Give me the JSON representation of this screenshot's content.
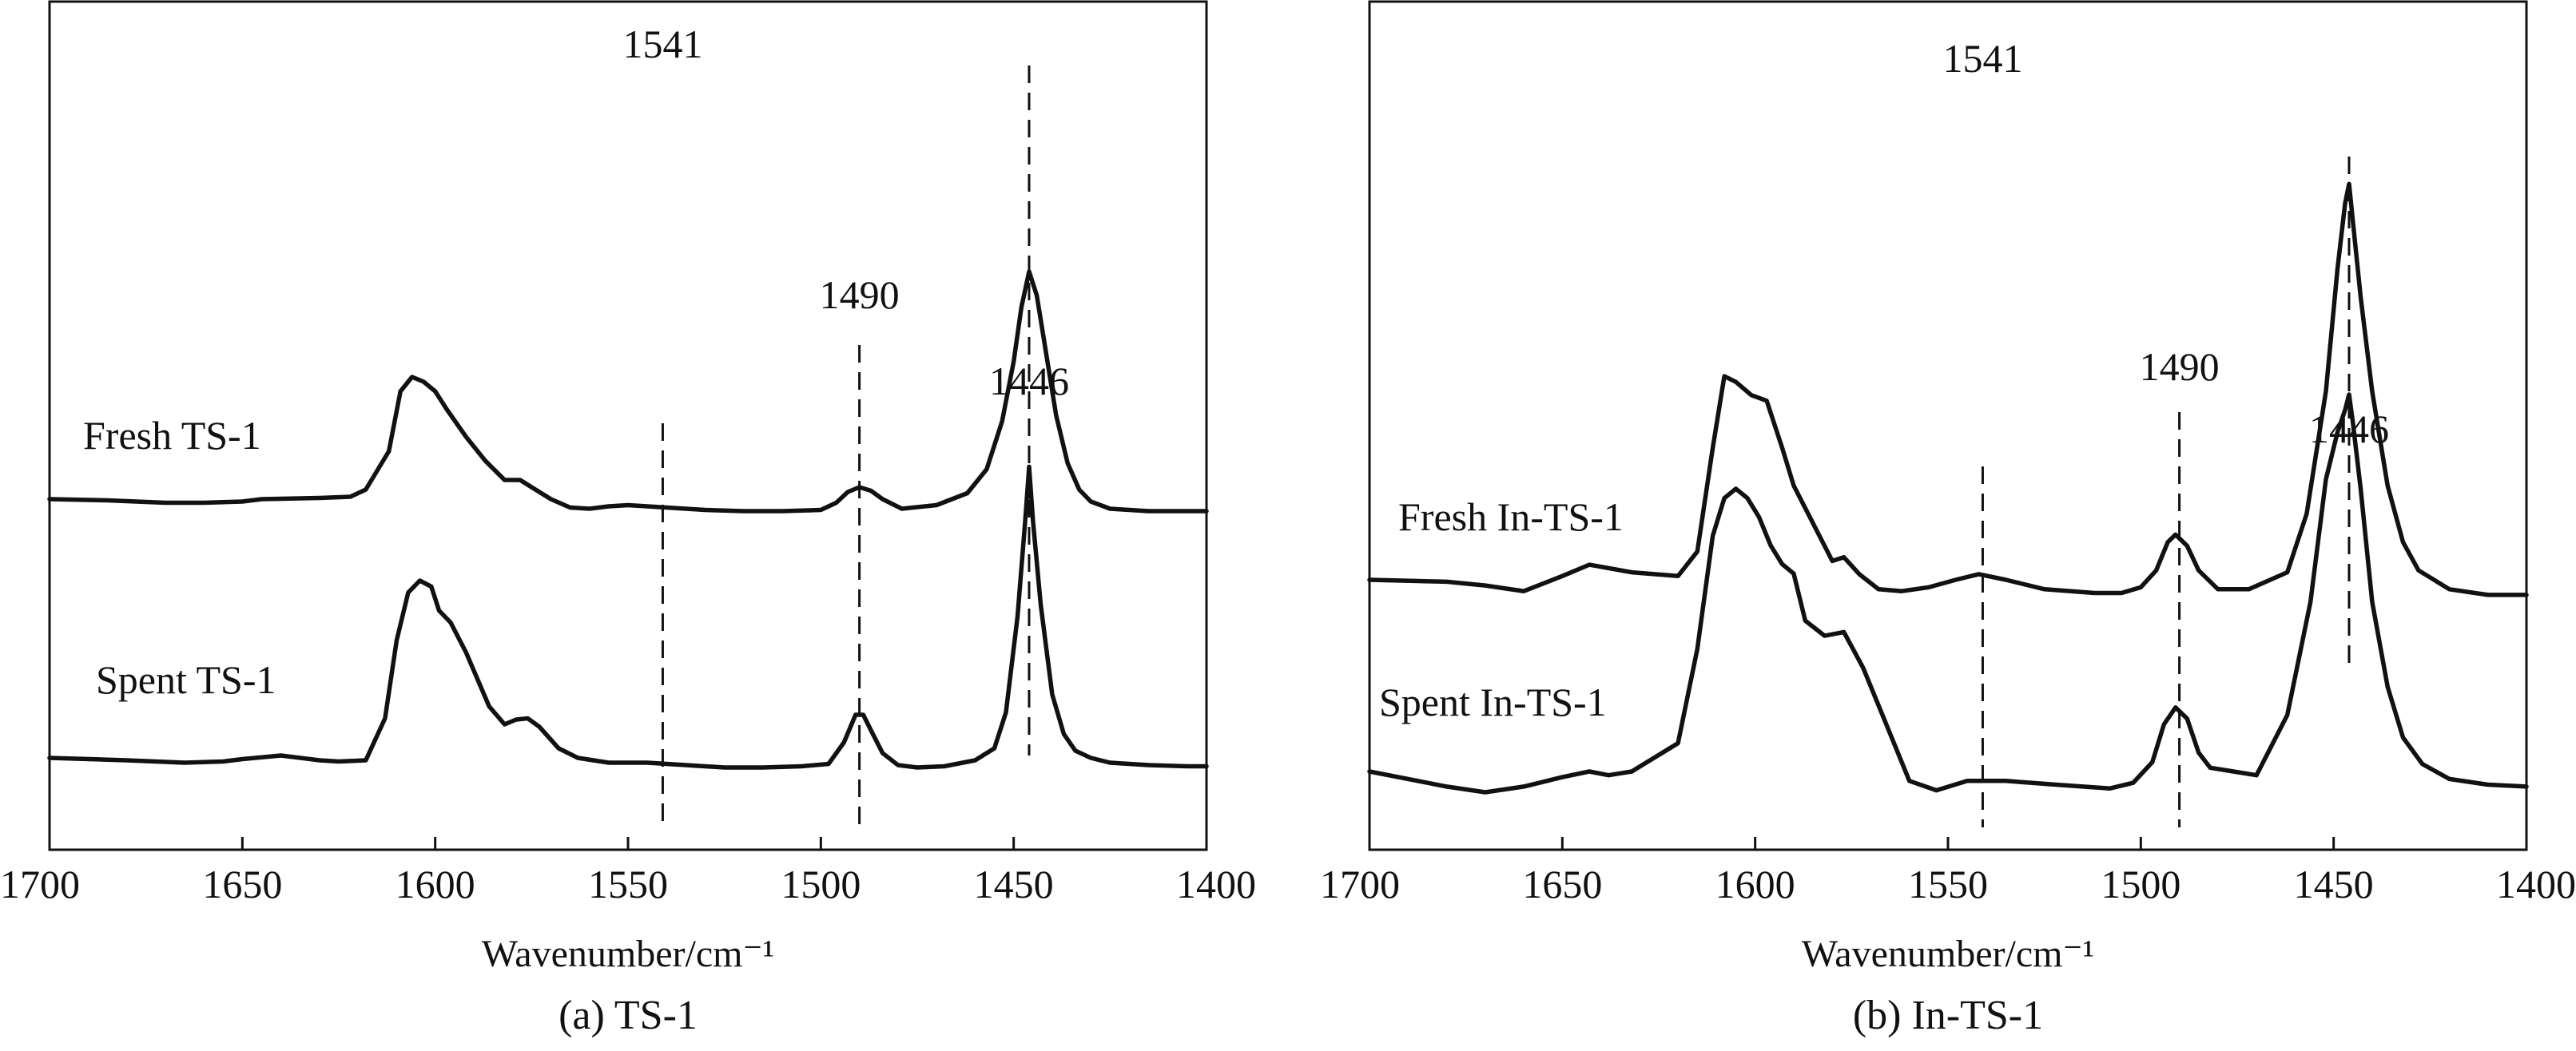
{
  "chart_data": [
    {
      "type": "line",
      "caption": "(a) TS-1",
      "xlabel": "Wavenumber/cm⁻¹",
      "ylabel": "",
      "xlim": [
        1700,
        1400
      ],
      "x_reversed": true,
      "y_ticks_shown": false,
      "grid": false,
      "xticks": [
        1700,
        1650,
        1600,
        1550,
        1500,
        1450,
        1400
      ],
      "peak_markers": [
        {
          "label": "1541",
          "x": 1541
        },
        {
          "label": "1490",
          "x": 1490
        },
        {
          "label": "1446",
          "x": 1446
        }
      ],
      "series": [
        {
          "name": "Fresh TS-1",
          "x": [
            1700,
            1685,
            1670,
            1660,
            1650,
            1645,
            1630,
            1622,
            1618,
            1612,
            1609,
            1606,
            1603,
            1600,
            1597,
            1592,
            1587,
            1582,
            1578,
            1575,
            1570,
            1565,
            1560,
            1555,
            1550,
            1540,
            1530,
            1520,
            1510,
            1500,
            1496,
            1493,
            1490,
            1487,
            1484,
            1479,
            1470,
            1462,
            1457,
            1453,
            1450,
            1448,
            1446,
            1444,
            1442,
            1439,
            1436,
            1433,
            1430,
            1425,
            1415,
            1405,
            1400
          ],
          "y": [
            0.1,
            0.09,
            0.07,
            0.07,
            0.08,
            0.1,
            0.11,
            0.12,
            0.18,
            0.5,
            1.0,
            1.12,
            1.08,
            1.0,
            0.85,
            0.62,
            0.42,
            0.26,
            0.26,
            0.2,
            0.1,
            0.03,
            0.02,
            0.04,
            0.05,
            0.03,
            0.01,
            0.0,
            0.0,
            0.01,
            0.07,
            0.16,
            0.2,
            0.17,
            0.1,
            0.02,
            0.05,
            0.15,
            0.35,
            0.75,
            1.25,
            1.7,
            2.0,
            1.8,
            1.4,
            0.8,
            0.4,
            0.18,
            0.08,
            0.02,
            0.0,
            0.0,
            0.0
          ]
        },
        {
          "name": "Spent TS-1",
          "x": [
            1700,
            1680,
            1665,
            1655,
            1650,
            1640,
            1630,
            1625,
            1618,
            1613,
            1610,
            1607,
            1604,
            1601,
            1599,
            1596,
            1592,
            1586,
            1582,
            1579,
            1576,
            1573,
            1568,
            1563,
            1555,
            1545,
            1535,
            1525,
            1515,
            1505,
            1498,
            1494,
            1491,
            1489,
            1487,
            1484,
            1480,
            1475,
            1468,
            1460,
            1455,
            1452,
            1449,
            1447,
            1446,
            1445,
            1443,
            1440,
            1437,
            1434,
            1430,
            1425,
            1415,
            1405,
            1400
          ],
          "y": [
            0.02,
            0.0,
            -0.02,
            -0.01,
            0.01,
            0.04,
            0.0,
            -0.01,
            0.0,
            0.35,
            1.0,
            1.4,
            1.5,
            1.45,
            1.25,
            1.15,
            0.9,
            0.45,
            0.3,
            0.34,
            0.35,
            0.28,
            0.1,
            0.02,
            -0.02,
            -0.02,
            -0.04,
            -0.06,
            -0.06,
            -0.05,
            -0.03,
            0.15,
            0.38,
            0.38,
            0.25,
            0.06,
            -0.04,
            -0.06,
            -0.05,
            0.0,
            0.1,
            0.4,
            1.2,
            2.0,
            2.45,
            2.0,
            1.3,
            0.55,
            0.22,
            0.08,
            0.02,
            -0.02,
            -0.04,
            -0.05,
            -0.05
          ]
        }
      ]
    },
    {
      "type": "line",
      "caption": "(b)  In-TS-1",
      "xlabel": "Wavenumber/cm⁻¹",
      "ylabel": "",
      "xlim": [
        1700,
        1400
      ],
      "x_reversed": true,
      "y_ticks_shown": false,
      "grid": false,
      "xticks": [
        1700,
        1650,
        1600,
        1550,
        1500,
        1450,
        1400
      ],
      "peak_markers": [
        {
          "label": "1541",
          "x": 1541
        },
        {
          "label": "1490",
          "x": 1490
        },
        {
          "label": "1446",
          "x": 1446
        }
      ],
      "series": [
        {
          "name": "Fresh In-TS-1",
          "x": [
            1700,
            1680,
            1670,
            1660,
            1650,
            1643,
            1632,
            1620,
            1615,
            1611,
            1608,
            1605,
            1601,
            1597,
            1593,
            1590,
            1585,
            1580,
            1577,
            1573,
            1568,
            1562,
            1555,
            1548,
            1542,
            1535,
            1525,
            1512,
            1505,
            1500,
            1496,
            1493,
            1491,
            1488,
            1485,
            1480,
            1472,
            1462,
            1457,
            1452,
            1449,
            1447,
            1446,
            1445,
            1443,
            1440,
            1436,
            1432,
            1428,
            1420,
            1410,
            1400
          ],
          "y": [
            0.0,
            -0.01,
            -0.03,
            -0.06,
            0.02,
            0.08,
            0.04,
            0.02,
            0.15,
            0.7,
            1.08,
            1.05,
            0.98,
            0.95,
            0.7,
            0.5,
            0.3,
            0.1,
            0.12,
            0.03,
            -0.05,
            -0.06,
            -0.04,
            0.0,
            0.03,
            0.0,
            -0.05,
            -0.07,
            -0.07,
            -0.04,
            0.05,
            0.2,
            0.24,
            0.18,
            0.05,
            -0.05,
            -0.05,
            0.04,
            0.35,
            1.0,
            1.65,
            2.0,
            2.1,
            1.9,
            1.5,
            1.0,
            0.5,
            0.2,
            0.05,
            -0.05,
            -0.08,
            -0.08
          ]
        },
        {
          "name": "Spent In-TS-1",
          "x": [
            1700,
            1690,
            1680,
            1670,
            1660,
            1650,
            1643,
            1638,
            1632,
            1620,
            1615,
            1611,
            1608,
            1605,
            1602,
            1599,
            1596,
            1593,
            1590,
            1587,
            1582,
            1577,
            1572,
            1566,
            1560,
            1553,
            1545,
            1535,
            1522,
            1508,
            1502,
            1497,
            1494,
            1491,
            1488,
            1485,
            1482,
            1476,
            1470,
            1462,
            1456,
            1452,
            1449,
            1447,
            1446,
            1445,
            1443,
            1440,
            1436,
            1432,
            1427,
            1420,
            1410,
            1400
          ],
          "y": [
            0.0,
            -0.04,
            -0.08,
            -0.11,
            -0.08,
            -0.03,
            0.0,
            -0.02,
            0.0,
            0.15,
            0.65,
            1.25,
            1.45,
            1.5,
            1.45,
            1.35,
            1.2,
            1.1,
            1.05,
            0.8,
            0.72,
            0.74,
            0.55,
            0.25,
            -0.05,
            -0.1,
            -0.05,
            -0.05,
            -0.07,
            -0.09,
            -0.06,
            0.05,
            0.25,
            0.34,
            0.28,
            0.1,
            0.02,
            0.0,
            -0.02,
            0.3,
            0.9,
            1.55,
            1.8,
            1.92,
            2.0,
            1.85,
            1.5,
            0.9,
            0.45,
            0.18,
            0.04,
            -0.04,
            -0.07,
            -0.08
          ]
        }
      ]
    }
  ]
}
